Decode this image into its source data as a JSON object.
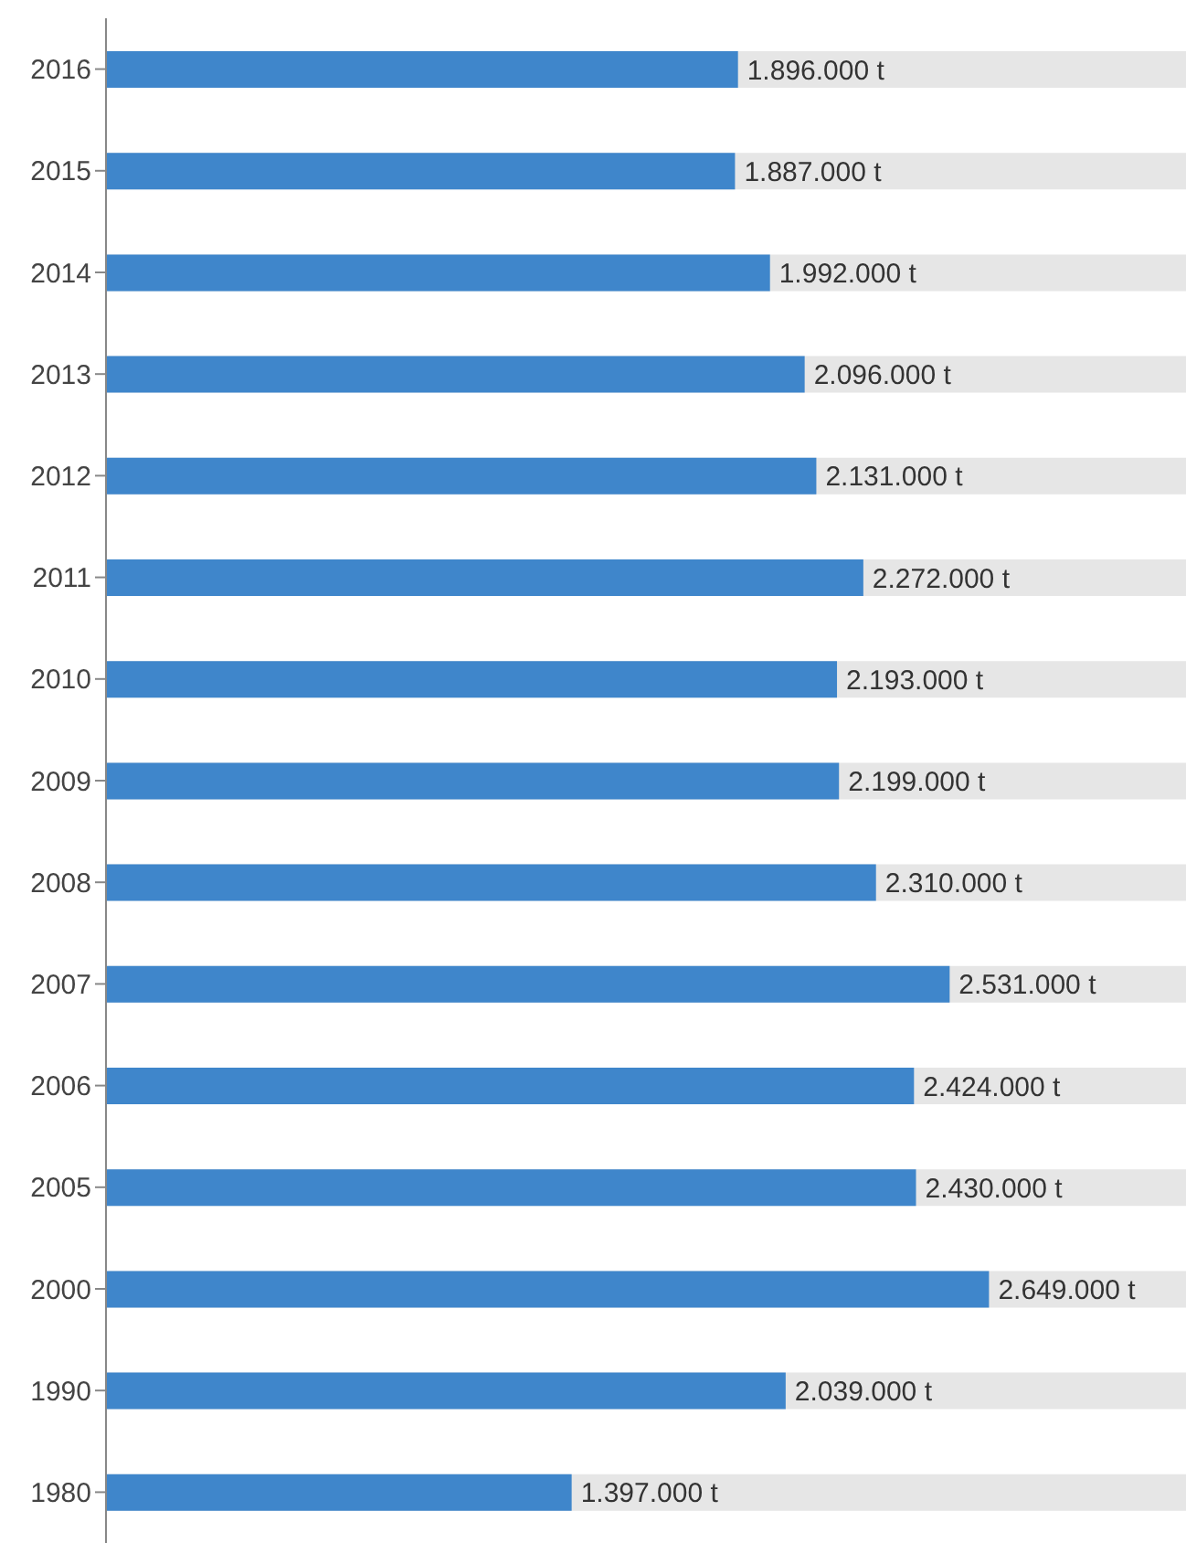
{
  "chart_data": {
    "type": "bar",
    "orientation": "horizontal",
    "categories": [
      "2016",
      "2015",
      "2014",
      "2013",
      "2012",
      "2011",
      "2010",
      "2009",
      "2008",
      "2007",
      "2006",
      "2005",
      "2000",
      "1990",
      "1980"
    ],
    "values": [
      1896000,
      1887000,
      1992000,
      2096000,
      2131000,
      2272000,
      2193000,
      2199000,
      2310000,
      2531000,
      2424000,
      2430000,
      2649000,
      2039000,
      1397000
    ],
    "value_labels": [
      "1.896.000 t",
      "1.887.000 t",
      "1.992.000 t",
      "2.096.000 t",
      "2.131.000 t",
      "2.272.000 t",
      "2.193.000 t",
      "2.199.000 t",
      "2.310.000 t",
      "2.531.000 t",
      "2.424.000 t",
      "2.430.000 t",
      "2.649.000 t",
      "2.039.000 t",
      "1.397.000 t"
    ],
    "color": "#3f86cb",
    "xlim": [
      0,
      3240000
    ],
    "tick_labels": "y"
  }
}
